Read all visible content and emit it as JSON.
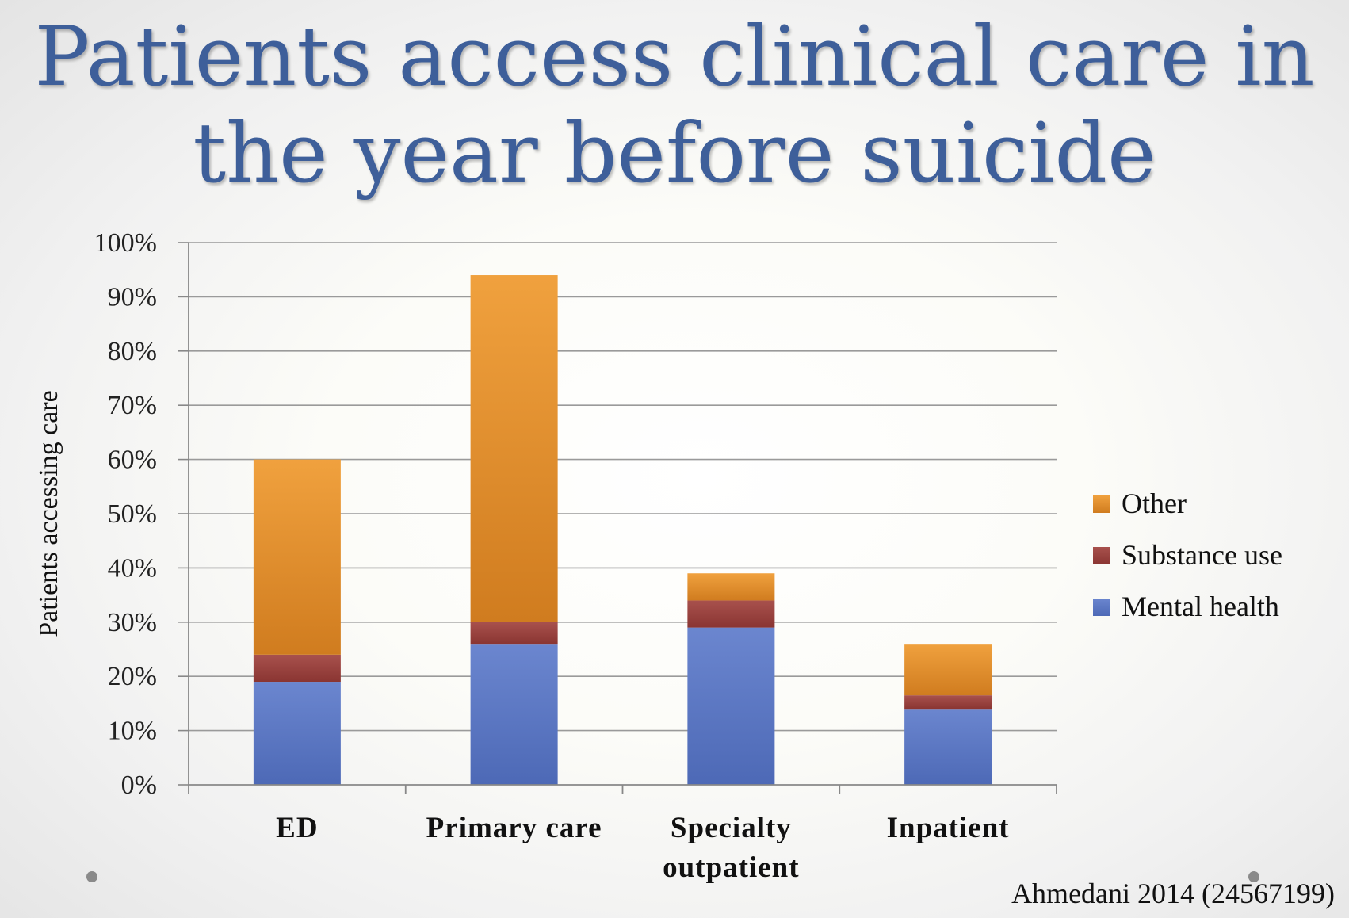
{
  "slide": {
    "title_line1": "Patients access clinical care in",
    "title_line2": "the year before suicide",
    "citation": "Ahmedani 2014 (24567199)"
  },
  "chart_data": {
    "type": "bar",
    "stacked": true,
    "title": "",
    "xlabel": "",
    "ylabel": "Patients accessing care",
    "ylim": [
      0,
      100
    ],
    "yticks": [
      "0%",
      "10%",
      "20%",
      "30%",
      "40%",
      "50%",
      "60%",
      "70%",
      "80%",
      "90%",
      "100%"
    ],
    "grid": true,
    "legend_position": "right",
    "categories": [
      [
        "ED"
      ],
      [
        "Primary care"
      ],
      [
        "Specialty",
        "outpatient"
      ],
      [
        "Inpatient"
      ]
    ],
    "series": [
      {
        "name": "Mental health",
        "color": "#5a77c2",
        "values": [
          19,
          26,
          29,
          14
        ]
      },
      {
        "name": "Substance use",
        "color": "#9c3f3c",
        "values": [
          5,
          4,
          5,
          2.5
        ]
      },
      {
        "name": "Other",
        "color": "#e58b2a",
        "values": [
          36,
          64,
          5,
          9.5
        ]
      }
    ],
    "legend_order": [
      "Other",
      "Substance use",
      "Mental health"
    ]
  }
}
